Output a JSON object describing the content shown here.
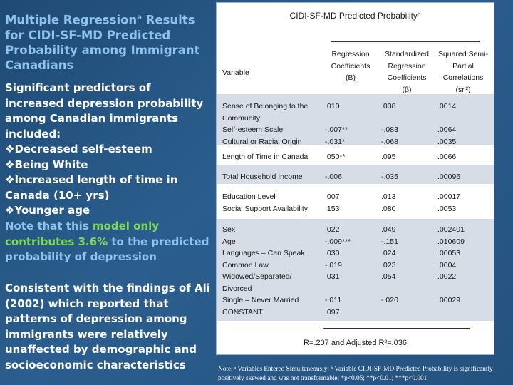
{
  "title": {
    "text": "Multiple Regression",
    "sup": "a",
    "rest": " Results for CIDI-SF-MD Predicted Probability among Immigrant Canadians"
  },
  "predictors": {
    "intro": "Significant predictors of increased depression probability among Canadian immigrants included:",
    "items": [
      "Decreased self-esteem",
      "Being White",
      "Increased length of time in Canada (10+ yrs)",
      "Younger age"
    ]
  },
  "note": {
    "before": "Note that this ",
    "highlight": "model only contributes 3.6%",
    "after": " to the predicted probability of depression"
  },
  "consistent": "Consistent with the findings of Ali (2002) which reported that patterns of depression among immigrants were relatively unaffected by demographic and socioeconomic characteristics",
  "table": {
    "header": "CIDI-SF-MD Predicted Probabilityᵇ",
    "variable_header": "Variable",
    "col_headers": [
      [
        "Regression",
        "Coefficients",
        "(B)"
      ],
      [
        "Standardized",
        "Regression",
        "Coefficients",
        "(β)"
      ],
      [
        "Squared Semi-",
        "Partial",
        "Correlations",
        "(srᵢ²)"
      ]
    ],
    "groups": [
      {
        "vars": [
          "Sense of Belonging to the",
          "Community",
          "Self-esteem Scale",
          "Cultural or Racial Origin"
        ],
        "b": [
          ".010",
          "",
          "-.007**",
          "-.031*"
        ],
        "beta": [
          ".038",
          "",
          "-.083",
          "-.068"
        ],
        "sr": [
          ".0014",
          "",
          ".0064",
          ".0035"
        ]
      },
      {
        "vars": [
          "Length of Time in Canada"
        ],
        "b": [
          ".050**"
        ],
        "beta": [
          ".095"
        ],
        "sr": [
          ".0066"
        ]
      },
      {
        "vars": [
          "Total Household Income"
        ],
        "b": [
          "-.006"
        ],
        "beta": [
          "-.035"
        ],
        "sr": [
          ".00096"
        ]
      },
      {
        "vars": [
          "Education Level",
          "Social Support Availability"
        ],
        "b": [
          ".007",
          ".153"
        ],
        "beta": [
          ".013",
          ".080"
        ],
        "sr": [
          ".00017",
          ".0053"
        ]
      },
      {
        "vars": [
          "Sex",
          "Age",
          "Languages – Can Speak",
          "Common Law",
          "Widowed/Separated/",
          "Divorced",
          "Single – Never Married",
          "CONSTANT"
        ],
        "b": [
          ".022",
          "-.009***",
          ".030",
          "-.019",
          ".031",
          "",
          "-.011",
          ".097"
        ],
        "beta": [
          ".049",
          "-.151",
          ".024",
          ".023",
          ".054",
          "",
          "-.020",
          ""
        ],
        "sr": [
          ".002401",
          ".010609",
          ".00053",
          ".0004",
          ".0022",
          "",
          ".00029",
          ""
        ]
      }
    ],
    "r_line": "R=.207 and Adjusted R²=.036"
  },
  "footnote": "Note. ᵃ Variables Entered Simultaneously; ᵇ Variable CIDI-SF-MD Predicted Probability is significantly positively skewed and was not transformable; *p<0.05; **p<0.01; ***p<0.001"
}
